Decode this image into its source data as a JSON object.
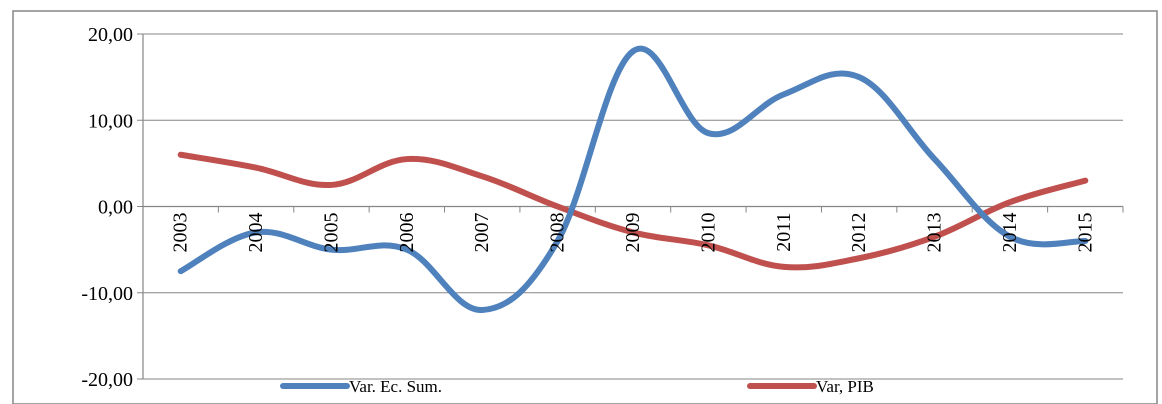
{
  "chart_data": {
    "type": "line",
    "smooth": true,
    "categories": [
      "2003",
      "2004",
      "2005",
      "2006",
      "2007",
      "2008",
      "2009",
      "2010",
      "2011",
      "2012",
      "2013",
      "2014",
      "2015"
    ],
    "series": [
      {
        "name": "Var. Ec. Sum.",
        "color": "#4f81bd",
        "values": [
          -7.5,
          -3.0,
          -5.0,
          -5.0,
          -12.0,
          -4.0,
          18.0,
          8.5,
          13.0,
          15.0,
          5.5,
          -3.5,
          -4.0
        ]
      },
      {
        "name": "Var, PIB",
        "color": "#c0504d",
        "values": [
          6.0,
          4.5,
          2.5,
          5.5,
          3.5,
          0.0,
          -3.0,
          -4.5,
          -7.0,
          -6.0,
          -3.5,
          0.5,
          3.0
        ]
      }
    ],
    "yticks": [
      20,
      10,
      0,
      -10,
      -20
    ],
    "ytick_labels": [
      "20,00",
      "10,00",
      "0,00",
      "-10,00",
      "-20,00"
    ],
    "ylim": [
      -20,
      20
    ],
    "grid": true,
    "legend_position": "bottom"
  }
}
